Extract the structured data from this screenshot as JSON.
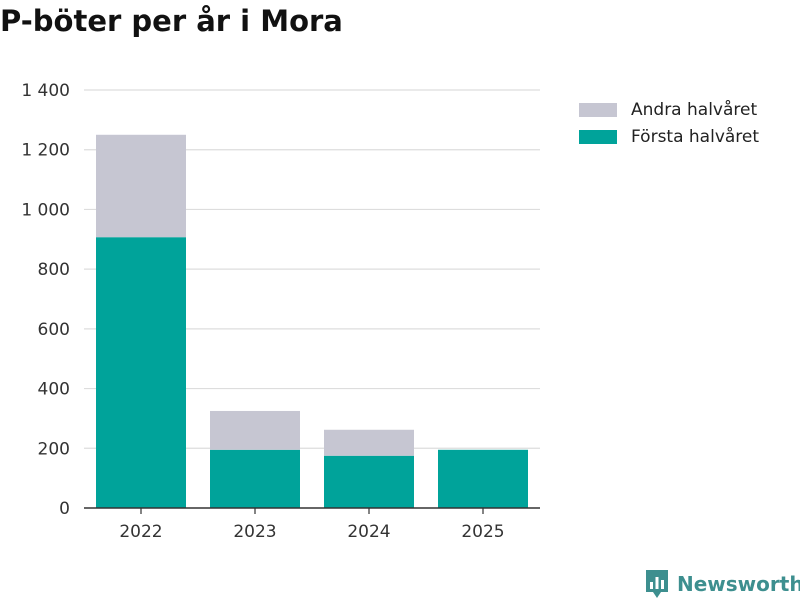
{
  "chart_data": {
    "type": "bar",
    "stacked": true,
    "title": "P-böter per år i Mora",
    "xlabel": "",
    "ylabel": "",
    "categories": [
      "2022",
      "2023",
      "2024",
      "2025"
    ],
    "series": [
      {
        "name": "Första halvåret",
        "color": "#00a39a",
        "values": [
          907,
          195,
          175,
          195
        ]
      },
      {
        "name": "Andra halvåret",
        "color": "#c6c6d2",
        "values": [
          343,
          130,
          87,
          0
        ]
      }
    ],
    "legend_order": [
      "Andra halvåret",
      "Första halvåret"
    ],
    "ylim": [
      0,
      1400
    ],
    "yticks": [
      0,
      200,
      400,
      600,
      800,
      1000,
      1200,
      1400
    ],
    "ytick_labels": [
      "0",
      "200",
      "400",
      "600",
      "800",
      "1 000",
      "1 200",
      "1 400"
    ],
    "grid": true,
    "legend_position": "top-right"
  },
  "brand": {
    "name": "Newsworthy",
    "color": "#3d8f8f",
    "icon": "newsworthy-logo-icon"
  }
}
